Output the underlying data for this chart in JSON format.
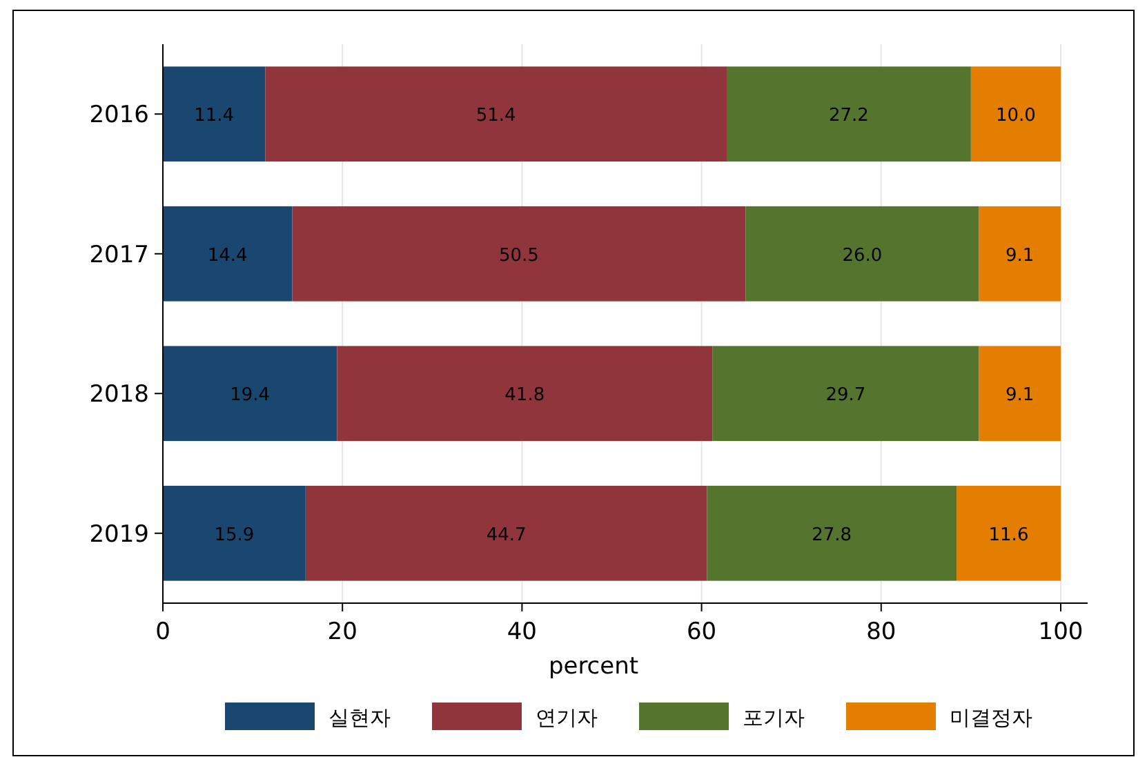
{
  "chart_data": {
    "type": "bar",
    "orientation": "horizontal",
    "stacked": true,
    "categories": [
      "2016",
      "2017",
      "2018",
      "2019"
    ],
    "series": [
      {
        "name": "실현자",
        "color": "#1a476f",
        "values": [
          11.4,
          14.4,
          19.4,
          15.9
        ],
        "value_labels": [
          "11.4",
          "14.4",
          "19.4",
          "15.9"
        ]
      },
      {
        "name": "연기자",
        "color": "#90353b",
        "values": [
          51.4,
          50.5,
          41.8,
          44.7
        ],
        "value_labels": [
          "51.4",
          "50.5",
          "41.8",
          "44.7"
        ]
      },
      {
        "name": "포기자",
        "color": "#55752f",
        "values": [
          27.2,
          26,
          29.7,
          27.8
        ],
        "value_labels": [
          "27.2",
          "26.0",
          "29.7",
          "27.8"
        ]
      },
      {
        "name": "미결정자",
        "color": "#e37e00",
        "values": [
          10,
          9.1,
          9.1,
          11.6
        ],
        "value_labels": [
          "10.0",
          "9.1",
          "9.1",
          "11.6"
        ]
      }
    ],
    "xlabel": "percent",
    "xlim": [
      0,
      103
    ],
    "xticks": [
      0,
      20,
      40,
      60,
      80,
      100
    ],
    "grid": "x",
    "legend": "bottom"
  }
}
